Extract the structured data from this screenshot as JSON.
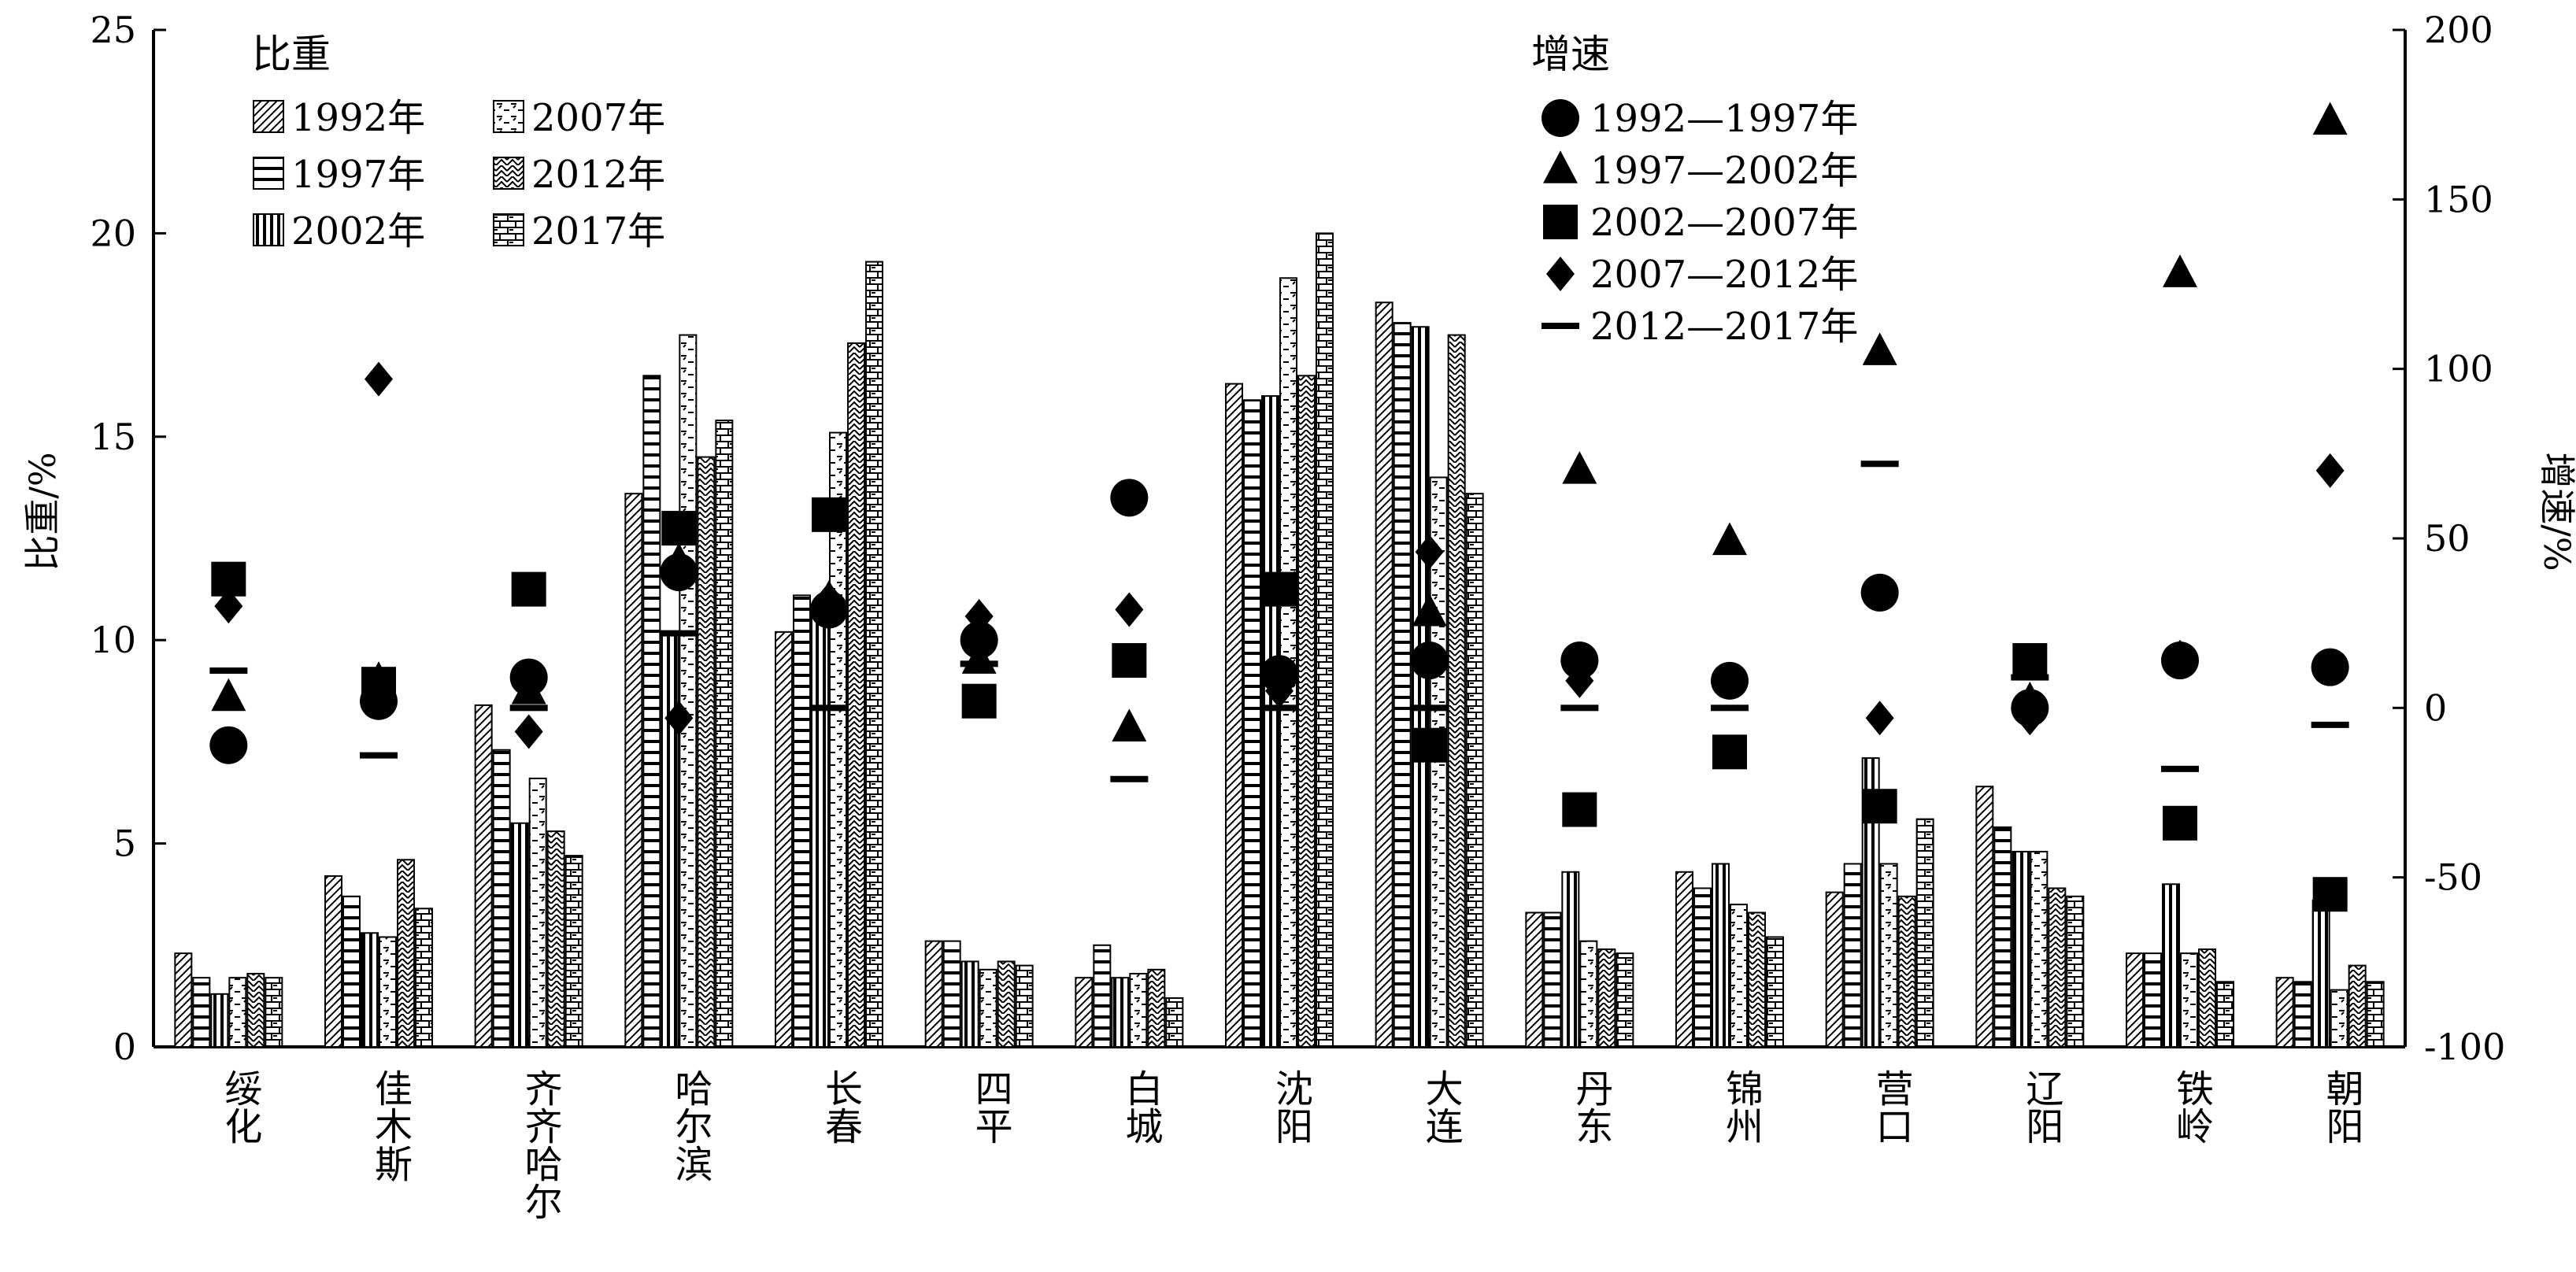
{
  "chart_data": {
    "type": "bar",
    "categories": [
      "绥化",
      "佳木斯",
      "齐齐哈尔",
      "哈尔滨",
      "长春",
      "四平",
      "白城",
      "沈阳",
      "大连",
      "丹东",
      "锦州",
      "营口",
      "辽阳",
      "铁岭",
      "朝阳"
    ],
    "ylabel": "比重/%",
    "ylim": [
      0,
      25
    ],
    "yticks": [
      "0",
      "5",
      "10",
      "15",
      "20",
      "25"
    ],
    "y2label": "增速/%",
    "y2lim": [
      -100,
      200
    ],
    "y2ticks": [
      "-100",
      "-50",
      "0",
      "50",
      "100",
      "150",
      "200"
    ],
    "bar_legend_title": "比重",
    "marker_legend_title": "增速",
    "series": [
      {
        "name": "1992年",
        "pattern": "diag",
        "values": [
          2.3,
          4.2,
          8.4,
          13.6,
          10.2,
          2.6,
          1.7,
          16.3,
          18.3,
          3.3,
          4.3,
          3.8,
          6.4,
          2.3,
          1.7
        ]
      },
      {
        "name": "1997年",
        "pattern": "hlines",
        "values": [
          1.7,
          3.7,
          7.3,
          16.5,
          11.1,
          2.6,
          2.5,
          15.9,
          17.8,
          3.3,
          3.9,
          4.5,
          5.4,
          2.3,
          1.6
        ]
      },
      {
        "name": "2002年",
        "pattern": "vlines",
        "values": [
          1.3,
          2.8,
          5.5,
          10.2,
          10.8,
          2.1,
          1.7,
          16.0,
          17.7,
          4.3,
          4.5,
          7.1,
          4.8,
          4.0,
          3.6
        ]
      },
      {
        "name": "2007年",
        "pattern": "dash",
        "values": [
          1.7,
          2.7,
          6.6,
          17.5,
          15.1,
          1.9,
          1.8,
          18.9,
          14.0,
          2.6,
          3.5,
          4.5,
          4.8,
          2.3,
          1.4
        ]
      },
      {
        "name": "2012年",
        "pattern": "zigzag",
        "values": [
          1.8,
          4.6,
          5.3,
          14.5,
          17.3,
          2.1,
          1.9,
          16.5,
          17.5,
          2.4,
          3.3,
          3.7,
          3.9,
          2.4,
          2.0
        ]
      },
      {
        "name": "2017年",
        "pattern": "brick",
        "values": [
          1.7,
          3.4,
          4.7,
          15.4,
          19.3,
          2.0,
          1.2,
          20.0,
          13.6,
          2.3,
          2.7,
          5.6,
          3.7,
          1.6,
          1.6
        ]
      }
    ],
    "growth_series": [
      {
        "name": "1992—1997年",
        "marker": "circle",
        "values": [
          -11,
          2,
          9,
          40,
          29,
          20,
          62,
          10,
          14,
          14,
          8,
          34,
          0,
          14,
          12
        ]
      },
      {
        "name": "1997—2002年",
        "marker": "triangle",
        "values": [
          3,
          8,
          5,
          43,
          32,
          14,
          -6,
          35,
          28,
          70,
          49,
          105,
          2,
          128,
          173
        ]
      },
      {
        "name": "2002—2007年",
        "marker": "square",
        "values": [
          38,
          7,
          35,
          53,
          57,
          2,
          14,
          35,
          -11,
          -30,
          -13,
          -29,
          14,
          -34,
          -55
        ]
      },
      {
        "name": "2007—2012年",
        "marker": "diamond",
        "values": [
          30,
          97,
          -7,
          -3,
          32,
          27,
          29,
          5,
          46,
          8,
          8,
          -3,
          -3,
          15,
          70
        ]
      },
      {
        "name": "2012—2017年",
        "marker": "dash",
        "values": [
          11,
          -14,
          0,
          22,
          0,
          13,
          -21,
          0,
          0,
          0,
          0,
          72,
          9,
          -18,
          -5
        ]
      }
    ]
  }
}
